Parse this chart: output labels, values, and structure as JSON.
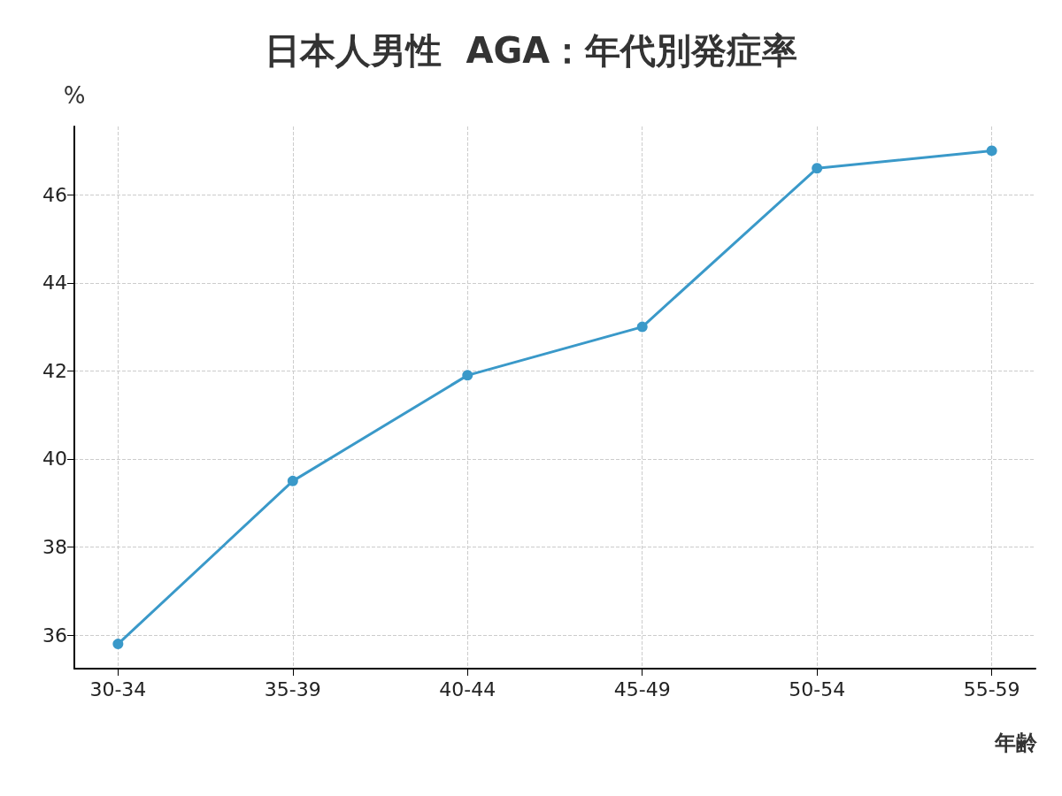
{
  "chart_data": {
    "type": "line",
    "title": "日本人男性  AGA：年代別発症率",
    "xlabel": "年齢",
    "ylabel": "%",
    "categories": [
      "30-34",
      "35-39",
      "40-44",
      "45-49",
      "50-54",
      "55-59"
    ],
    "series": [
      {
        "color": "#3a99c9",
        "values": [
          35.8,
          39.5,
          41.9,
          43.0,
          46.6,
          47.0
        ]
      }
    ],
    "ylim": [
      35.24,
      47.55
    ],
    "yticks": [
      36,
      38,
      40,
      42,
      44,
      46
    ],
    "grid": true,
    "marker": "circle",
    "line_style": "solid"
  }
}
